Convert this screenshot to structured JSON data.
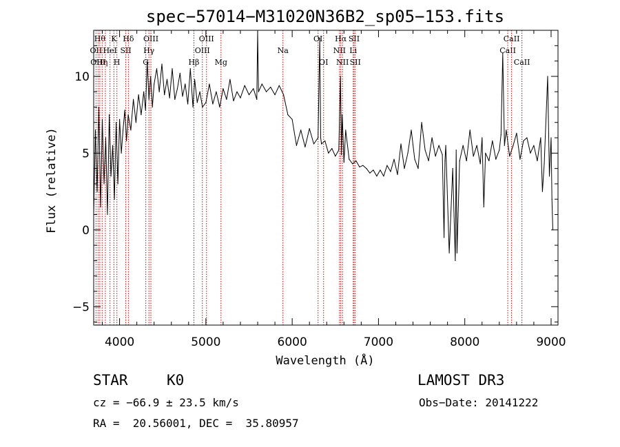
{
  "chart_data": {
    "type": "line",
    "title": "spec−57014−M31020N36B2_sp05−153.fits",
    "xlabel": "Wavelength (Å)",
    "ylabel": "Flux (relative)",
    "xlim": [
      3700,
      9080
    ],
    "ylim": [
      -6.2,
      13.0
    ],
    "xticks": [
      4000,
      5000,
      6000,
      7000,
      8000,
      9000
    ],
    "xtick_labels": [
      "4000",
      "5000",
      "6000",
      "7000",
      "8000",
      "9000"
    ],
    "yticks": [
      -5,
      0,
      5,
      10
    ],
    "ytick_labels": [
      "−5",
      "0",
      "5",
      "10"
    ],
    "line_color": "#000000",
    "marker_color": "#cc0000",
    "series": [
      {
        "name": "flux",
        "x": [
          3700,
          3720,
          3740,
          3760,
          3780,
          3800,
          3820,
          3840,
          3860,
          3880,
          3900,
          3920,
          3940,
          3960,
          3980,
          4000,
          4020,
          4040,
          4060,
          4080,
          4100,
          4130,
          4160,
          4190,
          4220,
          4250,
          4280,
          4300,
          4320,
          4340,
          4360,
          4380,
          4400,
          4430,
          4460,
          4490,
          4520,
          4550,
          4580,
          4610,
          4640,
          4670,
          4700,
          4730,
          4760,
          4790,
          4820,
          4850,
          4870,
          4900,
          4930,
          4960,
          5000,
          5040,
          5080,
          5120,
          5160,
          5200,
          5240,
          5280,
          5320,
          5360,
          5400,
          5450,
          5500,
          5550,
          5590,
          5600,
          5610,
          5650,
          5700,
          5750,
          5800,
          5850,
          5900,
          5950,
          6000,
          6050,
          6100,
          6150,
          6200,
          6250,
          6300,
          6320,
          6330,
          6340,
          6380,
          6420,
          6460,
          6500,
          6540,
          6560,
          6570,
          6580,
          6600,
          6620,
          6660,
          6700,
          6740,
          6780,
          6820,
          6860,
          6900,
          6940,
          6980,
          7020,
          7060,
          7100,
          7140,
          7180,
          7220,
          7260,
          7300,
          7340,
          7380,
          7420,
          7460,
          7500,
          7540,
          7580,
          7620,
          7660,
          7700,
          7740,
          7760,
          7770,
          7780,
          7820,
          7860,
          7890,
          7900,
          7910,
          7940,
          7980,
          8020,
          8060,
          8100,
          8140,
          8180,
          8200,
          8220,
          8240,
          8280,
          8320,
          8360,
          8400,
          8420,
          8440,
          8460,
          8480,
          8520,
          8560,
          8600,
          8640,
          8680,
          8720,
          8760,
          8800,
          8840,
          8880,
          8900,
          8920,
          8960,
          8980,
          9000,
          9010,
          9020
        ],
        "values": [
          1.0,
          6.5,
          2.5,
          8.0,
          1.5,
          7.2,
          3.0,
          6.0,
          1.0,
          7.5,
          3.5,
          5.5,
          2.0,
          7.0,
          3.0,
          7.2,
          5.0,
          6.5,
          7.8,
          5.8,
          7.5,
          6.5,
          8.5,
          7.0,
          8.8,
          7.5,
          9.0,
          7.8,
          11.0,
          8.5,
          10.0,
          8.0,
          9.5,
          10.5,
          9.0,
          10.8,
          8.8,
          9.8,
          8.6,
          10.5,
          8.5,
          9.2,
          10.2,
          8.7,
          9.5,
          8.2,
          10.5,
          8.0,
          9.8,
          8.3,
          9.0,
          8.0,
          8.3,
          9.5,
          8.2,
          9.0,
          8.0,
          9.2,
          8.5,
          9.8,
          8.4,
          9.0,
          8.6,
          9.4,
          8.8,
          9.2,
          8.5,
          12.9,
          9.0,
          9.5,
          9.0,
          9.3,
          8.8,
          9.4,
          8.8,
          7.5,
          7.2,
          5.5,
          6.5,
          5.4,
          6.6,
          5.6,
          6.0,
          12.5,
          6.0,
          5.6,
          5.8,
          5.0,
          5.3,
          4.8,
          5.2,
          10.0,
          4.9,
          7.5,
          4.4,
          6.5,
          4.6,
          4.3,
          4.5,
          4.1,
          4.2,
          4.0,
          3.7,
          3.9,
          3.5,
          3.9,
          3.5,
          4.2,
          3.8,
          4.6,
          3.6,
          5.6,
          4.0,
          5.0,
          6.5,
          4.6,
          4.0,
          7.0,
          5.2,
          4.5,
          6.0,
          4.8,
          5.5,
          4.9,
          -0.5,
          4.5,
          5.5,
          -1.5,
          4.0,
          -2.0,
          5.2,
          -1.5,
          4.5,
          5.5,
          4.5,
          6.5,
          4.8,
          5.5,
          4.3,
          6.0,
          1.5,
          5.0,
          4.5,
          5.8,
          4.6,
          5.2,
          6.2,
          11.5,
          5.5,
          6.5,
          4.8,
          5.5,
          6.3,
          4.6,
          5.8,
          6.0,
          5.0,
          5.5,
          4.5,
          6.0,
          2.5,
          4.3,
          10.0,
          3.5,
          6.0,
          2.0,
          0.0
        ]
      }
    ],
    "line_markers": [
      {
        "wl": 3727,
        "label": "OII",
        "row": 1
      },
      {
        "wl": 3750,
        "label": "OIII",
        "row": 2
      },
      {
        "wl": 3771,
        "label": "Hθ",
        "row": 0
      },
      {
        "wl": 3798,
        "label": "Hη",
        "row": 2
      },
      {
        "wl": 3835,
        "label": "",
        "row": 0
      },
      {
        "wl": 3889,
        "label": "HeI",
        "row": 1
      },
      {
        "wl": 3934,
        "label": "K",
        "row": 0
      },
      {
        "wl": 3969,
        "label": "H",
        "row": 2
      },
      {
        "wl": 4072,
        "label": "SII",
        "row": 1
      },
      {
        "wl": 4102,
        "label": "Hδ",
        "row": 0
      },
      {
        "wl": 4304,
        "label": "G",
        "row": 2
      },
      {
        "wl": 4340,
        "label": "Hγ",
        "row": 1
      },
      {
        "wl": 4363,
        "label": "OIII",
        "row": 0
      },
      {
        "wl": 4861,
        "label": "Hβ",
        "row": 2
      },
      {
        "wl": 4959,
        "label": "OIII",
        "row": 1
      },
      {
        "wl": 5007,
        "label": "OIII",
        "row": 0
      },
      {
        "wl": 5175,
        "label": "Mg",
        "row": 2
      },
      {
        "wl": 5893,
        "label": "Na",
        "row": 1
      },
      {
        "wl": 6300,
        "label": "OI",
        "row": 0
      },
      {
        "wl": 6364,
        "label": "OI",
        "row": 2
      },
      {
        "wl": 6548,
        "label": "NII",
        "row": 1
      },
      {
        "wl": 6563,
        "label": "Hα",
        "row": 0
      },
      {
        "wl": 6583,
        "label": "NII",
        "row": 2
      },
      {
        "wl": 6707,
        "label": "Li",
        "row": 1
      },
      {
        "wl": 6717,
        "label": "SII",
        "row": 0
      },
      {
        "wl": 6731,
        "label": "SII",
        "row": 2
      },
      {
        "wl": 8498,
        "label": "CaII",
        "row": 1
      },
      {
        "wl": 8542,
        "label": "CaII",
        "row": 0
      },
      {
        "wl": 8662,
        "label": "CaII",
        "row": 2
      }
    ]
  },
  "info": {
    "class": "STAR",
    "subclass": "K0",
    "survey": "LAMOST DR3",
    "cz": "cz = −66.9 ± 23.5 km/s",
    "obs_date": "Obs−Date: 20141222",
    "radec": "RA =  20.56001, DEC =  35.80957"
  }
}
